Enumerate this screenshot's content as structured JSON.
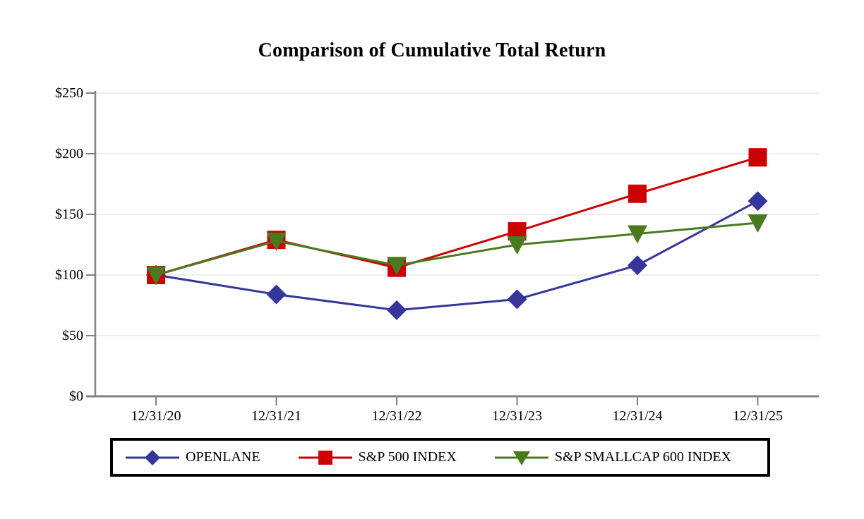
{
  "page": {
    "background_color": "#ffffff"
  },
  "chart_data": {
    "type": "line",
    "title": "Comparison of Cumulative Total Return",
    "categories": [
      "12/31/20",
      "12/31/21",
      "12/31/22",
      "12/31/23",
      "12/31/24",
      "12/31/25"
    ],
    "series": [
      {
        "name": "OPENLANE",
        "marker": "diamond",
        "color": "#35359B",
        "values": [
          100,
          84,
          71,
          80,
          108,
          161
        ]
      },
      {
        "name": "S&P 500 INDEX",
        "marker": "square",
        "color": "#CC0000",
        "values": [
          100,
          129,
          106,
          136,
          167,
          197
        ]
      },
      {
        "name": "S&P SMALLCAP 600 INDEX",
        "marker": "triangle-down",
        "color": "#4A7A1E",
        "values": [
          100,
          128,
          108,
          125,
          134,
          143
        ]
      }
    ],
    "xlabel": "",
    "ylabel": "",
    "ylim": [
      0,
      250
    ],
    "y_tick_values": [
      0,
      50,
      100,
      150,
      200,
      250
    ],
    "y_tick_labels": [
      "$0",
      "$50",
      "$100",
      "$150",
      "$200",
      "$250"
    ],
    "grid": true,
    "legend_position": "bottom",
    "axis_color": "#808080",
    "grid_color": "#E8E8E8",
    "legend_border_color": "#000000"
  }
}
